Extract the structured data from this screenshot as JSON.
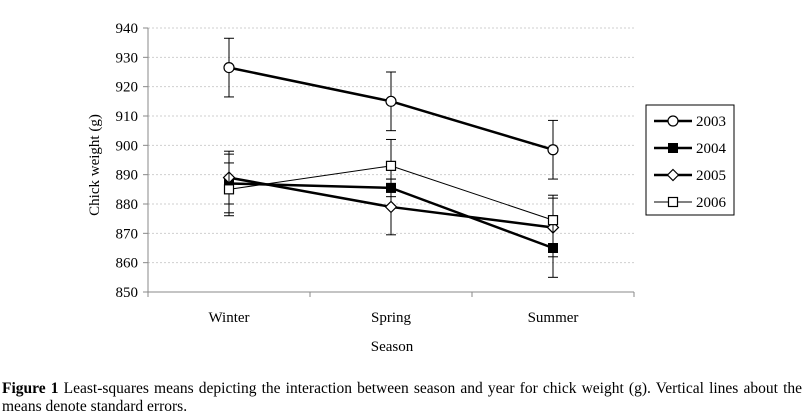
{
  "chart_data": {
    "type": "line",
    "categories": [
      "Winter",
      "Spring",
      "Summer"
    ],
    "ylabel": "Chick weight (g)",
    "xlabel": "Season",
    "ylim": [
      850,
      940
    ],
    "yticks": [
      850,
      860,
      870,
      880,
      890,
      900,
      910,
      920,
      930,
      940
    ],
    "grid": "horizontal dashed",
    "legend_position": "right",
    "series": [
      {
        "name": "2003",
        "marker": "circle-open",
        "weight": "thick",
        "values": [
          926.5,
          915,
          898.5
        ],
        "error": [
          10,
          10,
          10
        ]
      },
      {
        "name": "2004",
        "marker": "square-filled",
        "weight": "thick",
        "values": [
          887,
          885.5,
          865
        ],
        "error": [
          10,
          3,
          10
        ]
      },
      {
        "name": "2005",
        "marker": "diamond-open",
        "weight": "thick",
        "values": [
          889,
          879,
          872
        ],
        "error": [
          9,
          9.5,
          10
        ]
      },
      {
        "name": "2006",
        "marker": "square-open",
        "weight": "thin",
        "values": [
          885,
          893,
          874.5
        ],
        "error": [
          9,
          9,
          8.5
        ]
      }
    ]
  },
  "caption": {
    "label": "Figure 1",
    "text": " Least-squares means depicting the interaction between season and year for chick weight (g). Vertical lines about the means denote standard errors."
  }
}
